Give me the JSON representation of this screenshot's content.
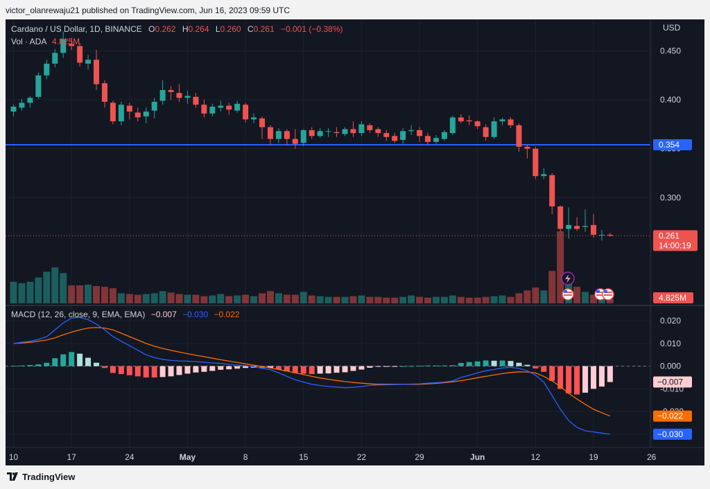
{
  "header": {
    "published_line": "victor_olanrewaju21 published on TradingView.com, Jun 16, 2023 09:59 UTC"
  },
  "legend": {
    "symbol": "Cardano / US Dollar, 1D, BINANCE",
    "o_label": "O",
    "o_value": "0.262",
    "h_label": "H",
    "h_value": "0.264",
    "l_label": "L",
    "l_value": "0.260",
    "c_label": "C",
    "c_value": "0.261",
    "change": "−0.001 (−0.38%)",
    "vol_label": "Vol · ADA",
    "vol_value": "4.825M"
  },
  "macd_legend": {
    "name": "MACD (12, 26, close, 9, EMA, EMA)",
    "hist": "−0.007",
    "macd": "−0.030",
    "signal": "−0.022"
  },
  "axis": {
    "currency": "USD",
    "price_badge": "0.261",
    "countdown": "14:00:19",
    "level_badge": "0.354",
    "volume_badge": "4.825M",
    "macd_hist_badge": "−0.007",
    "macd_signal_badge": "−0.022",
    "macd_line_badge": "−0.030"
  },
  "footer": {
    "brand": "TradingView"
  },
  "colors": {
    "up": "#26a69a",
    "down": "#ef5350",
    "level": "#2962ff",
    "macd": "#2962ff",
    "signal": "#ff6d00",
    "hist_pos": "#26a69a",
    "hist_pos_light": "#b2dfdb",
    "hist_neg": "#ff5252",
    "hist_neg_light": "#ffcdd2"
  },
  "chart_data": {
    "type": "candlestick",
    "title": "Cardano / US Dollar, 1D, BINANCE",
    "ylabel": "USD",
    "ylim": [
      0.24,
      0.478
    ],
    "yticks": [
      0.3,
      0.35,
      0.4,
      0.45
    ],
    "xticks": [
      "10",
      "17",
      "24",
      "May",
      "8",
      "15",
      "22",
      "29",
      "Jun",
      "12",
      "19",
      "26"
    ],
    "level_line": 0.354,
    "start_date": "2023-04-10",
    "candles": [
      [
        0.388,
        0.393,
        0.383,
        0.395
      ],
      [
        0.392,
        0.397,
        0.389,
        0.401
      ],
      [
        0.397,
        0.402,
        0.392,
        0.404
      ],
      [
        0.403,
        0.425,
        0.401,
        0.428
      ],
      [
        0.425,
        0.437,
        0.421,
        0.441
      ],
      [
        0.437,
        0.448,
        0.433,
        0.452
      ],
      [
        0.448,
        0.462,
        0.443,
        0.47
      ],
      [
        0.457,
        0.455,
        0.451,
        0.463
      ],
      [
        0.455,
        0.438,
        0.434,
        0.458
      ],
      [
        0.437,
        0.441,
        0.431,
        0.446
      ],
      [
        0.441,
        0.416,
        0.41,
        0.451
      ],
      [
        0.417,
        0.398,
        0.392,
        0.42
      ],
      [
        0.397,
        0.378,
        0.375,
        0.399
      ],
      [
        0.378,
        0.395,
        0.374,
        0.398
      ],
      [
        0.394,
        0.388,
        0.38,
        0.397
      ],
      [
        0.387,
        0.382,
        0.378,
        0.392
      ],
      [
        0.383,
        0.388,
        0.376,
        0.392
      ],
      [
        0.389,
        0.398,
        0.381,
        0.402
      ],
      [
        0.399,
        0.41,
        0.395,
        0.42
      ],
      [
        0.41,
        0.408,
        0.4,
        0.414
      ],
      [
        0.407,
        0.402,
        0.398,
        0.416
      ],
      [
        0.402,
        0.404,
        0.396,
        0.409
      ],
      [
        0.403,
        0.395,
        0.392,
        0.407
      ],
      [
        0.395,
        0.386,
        0.382,
        0.4
      ],
      [
        0.386,
        0.393,
        0.383,
        0.396
      ],
      [
        0.392,
        0.394,
        0.388,
        0.399
      ],
      [
        0.394,
        0.39,
        0.385,
        0.397
      ],
      [
        0.389,
        0.396,
        0.387,
        0.399
      ],
      [
        0.395,
        0.38,
        0.377,
        0.397
      ],
      [
        0.38,
        0.382,
        0.376,
        0.386
      ],
      [
        0.381,
        0.372,
        0.36,
        0.383
      ],
      [
        0.372,
        0.36,
        0.354,
        0.374
      ],
      [
        0.36,
        0.368,
        0.356,
        0.371
      ],
      [
        0.368,
        0.36,
        0.354,
        0.37
      ],
      [
        0.36,
        0.355,
        0.35,
        0.37
      ],
      [
        0.356,
        0.369,
        0.353,
        0.37
      ],
      [
        0.369,
        0.363,
        0.36,
        0.372
      ],
      [
        0.363,
        0.368,
        0.361,
        0.371
      ],
      [
        0.368,
        0.368,
        0.362,
        0.371
      ],
      [
        0.367,
        0.366,
        0.362,
        0.372
      ],
      [
        0.365,
        0.37,
        0.363,
        0.372
      ],
      [
        0.37,
        0.366,
        0.362,
        0.378
      ],
      [
        0.366,
        0.375,
        0.363,
        0.378
      ],
      [
        0.374,
        0.369,
        0.366,
        0.376
      ],
      [
        0.37,
        0.366,
        0.362,
        0.372
      ],
      [
        0.366,
        0.362,
        0.358,
        0.369
      ],
      [
        0.363,
        0.358,
        0.356,
        0.366
      ],
      [
        0.359,
        0.368,
        0.355,
        0.371
      ],
      [
        0.368,
        0.369,
        0.364,
        0.374
      ],
      [
        0.369,
        0.363,
        0.357,
        0.372
      ],
      [
        0.363,
        0.357,
        0.354,
        0.366
      ],
      [
        0.357,
        0.361,
        0.355,
        0.364
      ],
      [
        0.36,
        0.367,
        0.358,
        0.369
      ],
      [
        0.366,
        0.382,
        0.364,
        0.384
      ],
      [
        0.382,
        0.378,
        0.376,
        0.385
      ],
      [
        0.379,
        0.378,
        0.374,
        0.384
      ],
      [
        0.378,
        0.373,
        0.37,
        0.379
      ],
      [
        0.372,
        0.362,
        0.358,
        0.375
      ],
      [
        0.362,
        0.378,
        0.36,
        0.382
      ],
      [
        0.378,
        0.38,
        0.374,
        0.382
      ],
      [
        0.38,
        0.374,
        0.371,
        0.382
      ],
      [
        0.374,
        0.352,
        0.347,
        0.376
      ],
      [
        0.352,
        0.35,
        0.34,
        0.354
      ],
      [
        0.35,
        0.322,
        0.319,
        0.352
      ],
      [
        0.322,
        0.324,
        0.319,
        0.33
      ],
      [
        0.323,
        0.291,
        0.283,
        0.325
      ],
      [
        0.291,
        0.268,
        0.265,
        0.292
      ],
      [
        0.268,
        0.272,
        0.258,
        0.29
      ],
      [
        0.271,
        0.268,
        0.266,
        0.28
      ],
      [
        0.27,
        0.271,
        0.265,
        0.288
      ],
      [
        0.272,
        0.262,
        0.259,
        0.283
      ],
      [
        0.262,
        0.262,
        0.256,
        0.267
      ],
      [
        0.262,
        0.261,
        0.26,
        0.264
      ]
    ],
    "volumes": [
      0.3,
      0.28,
      0.3,
      0.36,
      0.44,
      0.5,
      0.42,
      0.25,
      0.25,
      0.26,
      0.24,
      0.23,
      0.21,
      0.14,
      0.13,
      0.12,
      0.13,
      0.14,
      0.17,
      0.15,
      0.13,
      0.12,
      0.12,
      0.1,
      0.11,
      0.13,
      0.1,
      0.11,
      0.12,
      0.1,
      0.14,
      0.17,
      0.14,
      0.12,
      0.12,
      0.16,
      0.11,
      0.1,
      0.09,
      0.09,
      0.09,
      0.1,
      0.11,
      0.09,
      0.09,
      0.08,
      0.08,
      0.09,
      0.11,
      0.09,
      0.08,
      0.09,
      0.09,
      0.11,
      0.09,
      0.08,
      0.08,
      0.09,
      0.1,
      0.11,
      0.09,
      0.14,
      0.18,
      0.22,
      0.18,
      0.45,
      1.0,
      0.36,
      0.23,
      0.16,
      0.12,
      0.16,
      0.06
    ],
    "macd_ylim": [
      -0.034,
      0.024
    ],
    "macd_yticks": [
      -0.03,
      -0.02,
      -0.01,
      0.0,
      0.01,
      0.02
    ],
    "macd_line": [
      0.01,
      0.0105,
      0.011,
      0.0118,
      0.013,
      0.016,
      0.019,
      0.0212,
      0.0215,
      0.0205,
      0.0185,
      0.016,
      0.013,
      0.011,
      0.009,
      0.007,
      0.005,
      0.0038,
      0.003,
      0.0025,
      0.0023,
      0.0022,
      0.002,
      0.0017,
      0.0014,
      0.0012,
      0.0008,
      0.0005,
      0.0002,
      -0.0003,
      -0.001,
      -0.0015,
      -0.003,
      -0.0045,
      -0.006,
      -0.007,
      -0.008,
      -0.0085,
      -0.009,
      -0.0092,
      -0.0095,
      -0.0093,
      -0.009,
      -0.0085,
      -0.0083,
      -0.0082,
      -0.0081,
      -0.008,
      -0.0079,
      -0.0078,
      -0.0075,
      -0.0073,
      -0.007,
      -0.0065,
      -0.005,
      -0.004,
      -0.003,
      -0.002,
      -0.0015,
      -0.0008,
      -0.0005,
      -0.001,
      -0.002,
      -0.004,
      -0.007,
      -0.013,
      -0.019,
      -0.024,
      -0.027,
      -0.0285,
      -0.029,
      -0.0295,
      -0.03
    ],
    "signal_line": [
      0.01,
      0.0102,
      0.0105,
      0.011,
      0.0115,
      0.0125,
      0.0138,
      0.015,
      0.016,
      0.0168,
      0.017,
      0.0168,
      0.016,
      0.0145,
      0.013,
      0.0115,
      0.01,
      0.0088,
      0.0078,
      0.007,
      0.0062,
      0.0055,
      0.0048,
      0.0042,
      0.0035,
      0.0028,
      0.0022,
      0.0016,
      0.001,
      0.0004,
      -0.0002,
      -0.0008,
      -0.0015,
      -0.0022,
      -0.003,
      -0.0037,
      -0.0045,
      -0.0052,
      -0.0058,
      -0.0063,
      -0.0068,
      -0.0072,
      -0.0075,
      -0.0078,
      -0.008,
      -0.008,
      -0.008,
      -0.008,
      -0.008,
      -0.008,
      -0.0078,
      -0.0076,
      -0.0073,
      -0.0069,
      -0.0064,
      -0.0058,
      -0.0051,
      -0.0045,
      -0.0039,
      -0.0033,
      -0.0028,
      -0.0025,
      -0.0026,
      -0.003,
      -0.0045,
      -0.0065,
      -0.009,
      -0.012,
      -0.0145,
      -0.0168,
      -0.019,
      -0.0205,
      -0.022
    ],
    "histogram": [
      0.0002,
      0.0003,
      0.0005,
      0.0008,
      0.0015,
      0.0035,
      0.0052,
      0.0062,
      0.0055,
      0.0037,
      0.0015,
      -0.0008,
      -0.003,
      -0.0035,
      -0.004,
      -0.0045,
      -0.005,
      -0.005,
      -0.0048,
      -0.0045,
      -0.0039,
      -0.0033,
      -0.0028,
      -0.0025,
      -0.0021,
      -0.0016,
      -0.0014,
      -0.0011,
      -0.0008,
      -0.0007,
      -0.0008,
      -0.0007,
      -0.0015,
      -0.0023,
      -0.003,
      -0.0033,
      -0.0035,
      -0.0033,
      -0.0032,
      -0.0029,
      -0.0027,
      -0.0021,
      -0.0015,
      -0.0007,
      -0.0003,
      -0.0002,
      -0.0001,
      0.0,
      0.0001,
      0.0002,
      0.0003,
      0.0003,
      0.0003,
      0.0004,
      0.0014,
      0.0018,
      0.0021,
      0.0025,
      0.0024,
      0.0025,
      0.0023,
      0.0015,
      0.0006,
      -0.001,
      -0.0025,
      -0.0065,
      -0.01,
      -0.012,
      -0.0125,
      -0.0117,
      -0.01,
      -0.009,
      -0.007
    ]
  }
}
